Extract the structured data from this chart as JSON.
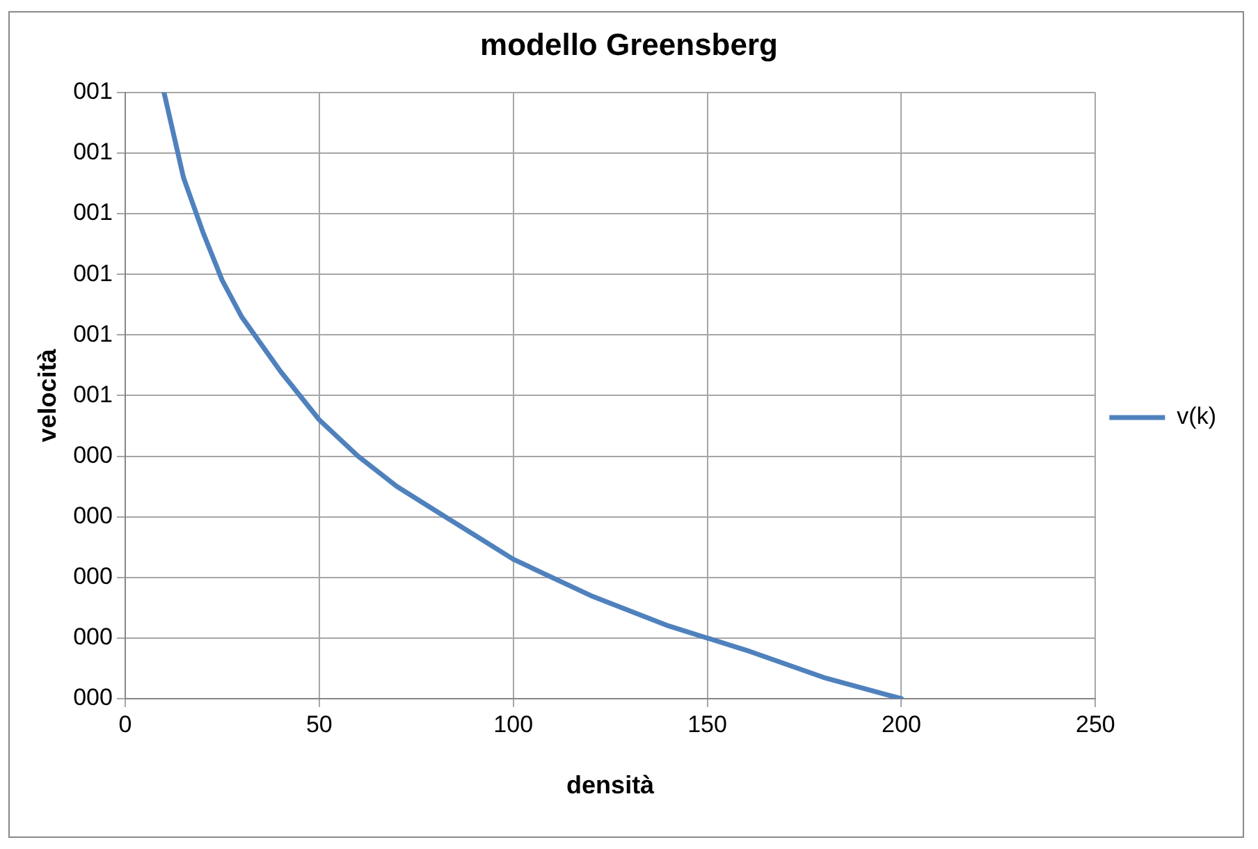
{
  "chart_data": {
    "type": "line",
    "title": "modello Greensberg",
    "xlabel": "densità",
    "ylabel": "velocità",
    "x": [
      10,
      15,
      20,
      25,
      30,
      40,
      50,
      60,
      70,
      80,
      90,
      100,
      120,
      140,
      160,
      180,
      200
    ],
    "series": [
      {
        "name": "v(k)",
        "color": "#4f81bd",
        "values": [
          1.0,
          0.86,
          0.77,
          0.69,
          0.63,
          0.54,
          0.46,
          0.4,
          0.35,
          0.31,
          0.27,
          0.23,
          0.17,
          0.12,
          0.08,
          0.035,
          0
        ]
      }
    ],
    "xlim": [
      0,
      250
    ],
    "xticks": [
      0,
      50,
      100,
      150,
      200,
      250
    ],
    "ylim": [
      0,
      1
    ],
    "yticks": [
      {
        "value": 0,
        "label": "000"
      },
      {
        "value": 0.1,
        "label": "000"
      },
      {
        "value": 0.2,
        "label": "000"
      },
      {
        "value": 0.3,
        "label": "000"
      },
      {
        "value": 0.4,
        "label": "000"
      },
      {
        "value": 0.5,
        "label": "001"
      },
      {
        "value": 0.6,
        "label": "001"
      },
      {
        "value": 0.7,
        "label": "001"
      },
      {
        "value": 0.8,
        "label": "001"
      },
      {
        "value": 0.9,
        "label": "001"
      },
      {
        "value": 1.0,
        "label": "001"
      }
    ],
    "grid": true,
    "legend": "right",
    "marker": "none",
    "line_style": "solid"
  }
}
